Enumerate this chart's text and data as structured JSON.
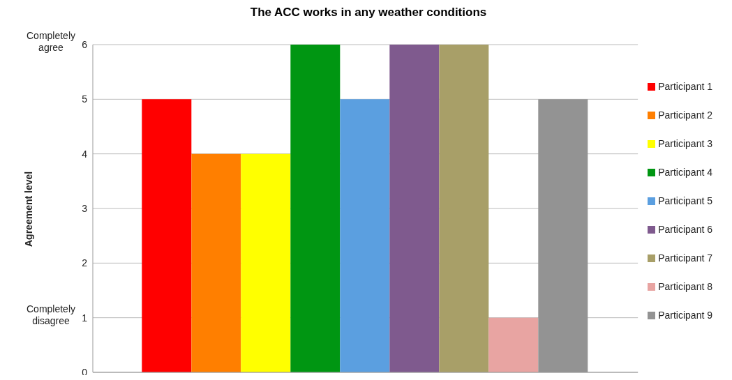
{
  "chart_data": {
    "type": "bar",
    "title": "The ACC works in any weather conditions",
    "ylabel": "Agreement level",
    "categories": [
      null
    ],
    "series": [
      {
        "name": "Participant 1",
        "color": "#ff0000",
        "values": [
          5
        ]
      },
      {
        "name": "Participant 2",
        "color": "#ff7f00",
        "values": [
          4
        ]
      },
      {
        "name": "Participant 3",
        "color": "#ffff00",
        "values": [
          4
        ]
      },
      {
        "name": "Participant 4",
        "color": "#009612",
        "values": [
          6
        ]
      },
      {
        "name": "Participant 5",
        "color": "#5b9fe0",
        "values": [
          5
        ]
      },
      {
        "name": "Participant 6",
        "color": "#7f5a8e",
        "values": [
          6
        ]
      },
      {
        "name": "Participant 7",
        "color": "#a89f68",
        "values": [
          6
        ]
      },
      {
        "name": "Participant 8",
        "color": "#e8a4a2",
        "values": [
          1
        ]
      },
      {
        "name": "Participant 9",
        "color": "#939393",
        "values": [
          5
        ]
      }
    ],
    "ylim": [
      0,
      6
    ],
    "yticks": [
      0,
      1,
      2,
      3,
      4,
      5,
      6
    ],
    "grid": "y",
    "legend": "right",
    "annotations": [
      "Completely agree",
      "Completely disagree"
    ]
  }
}
